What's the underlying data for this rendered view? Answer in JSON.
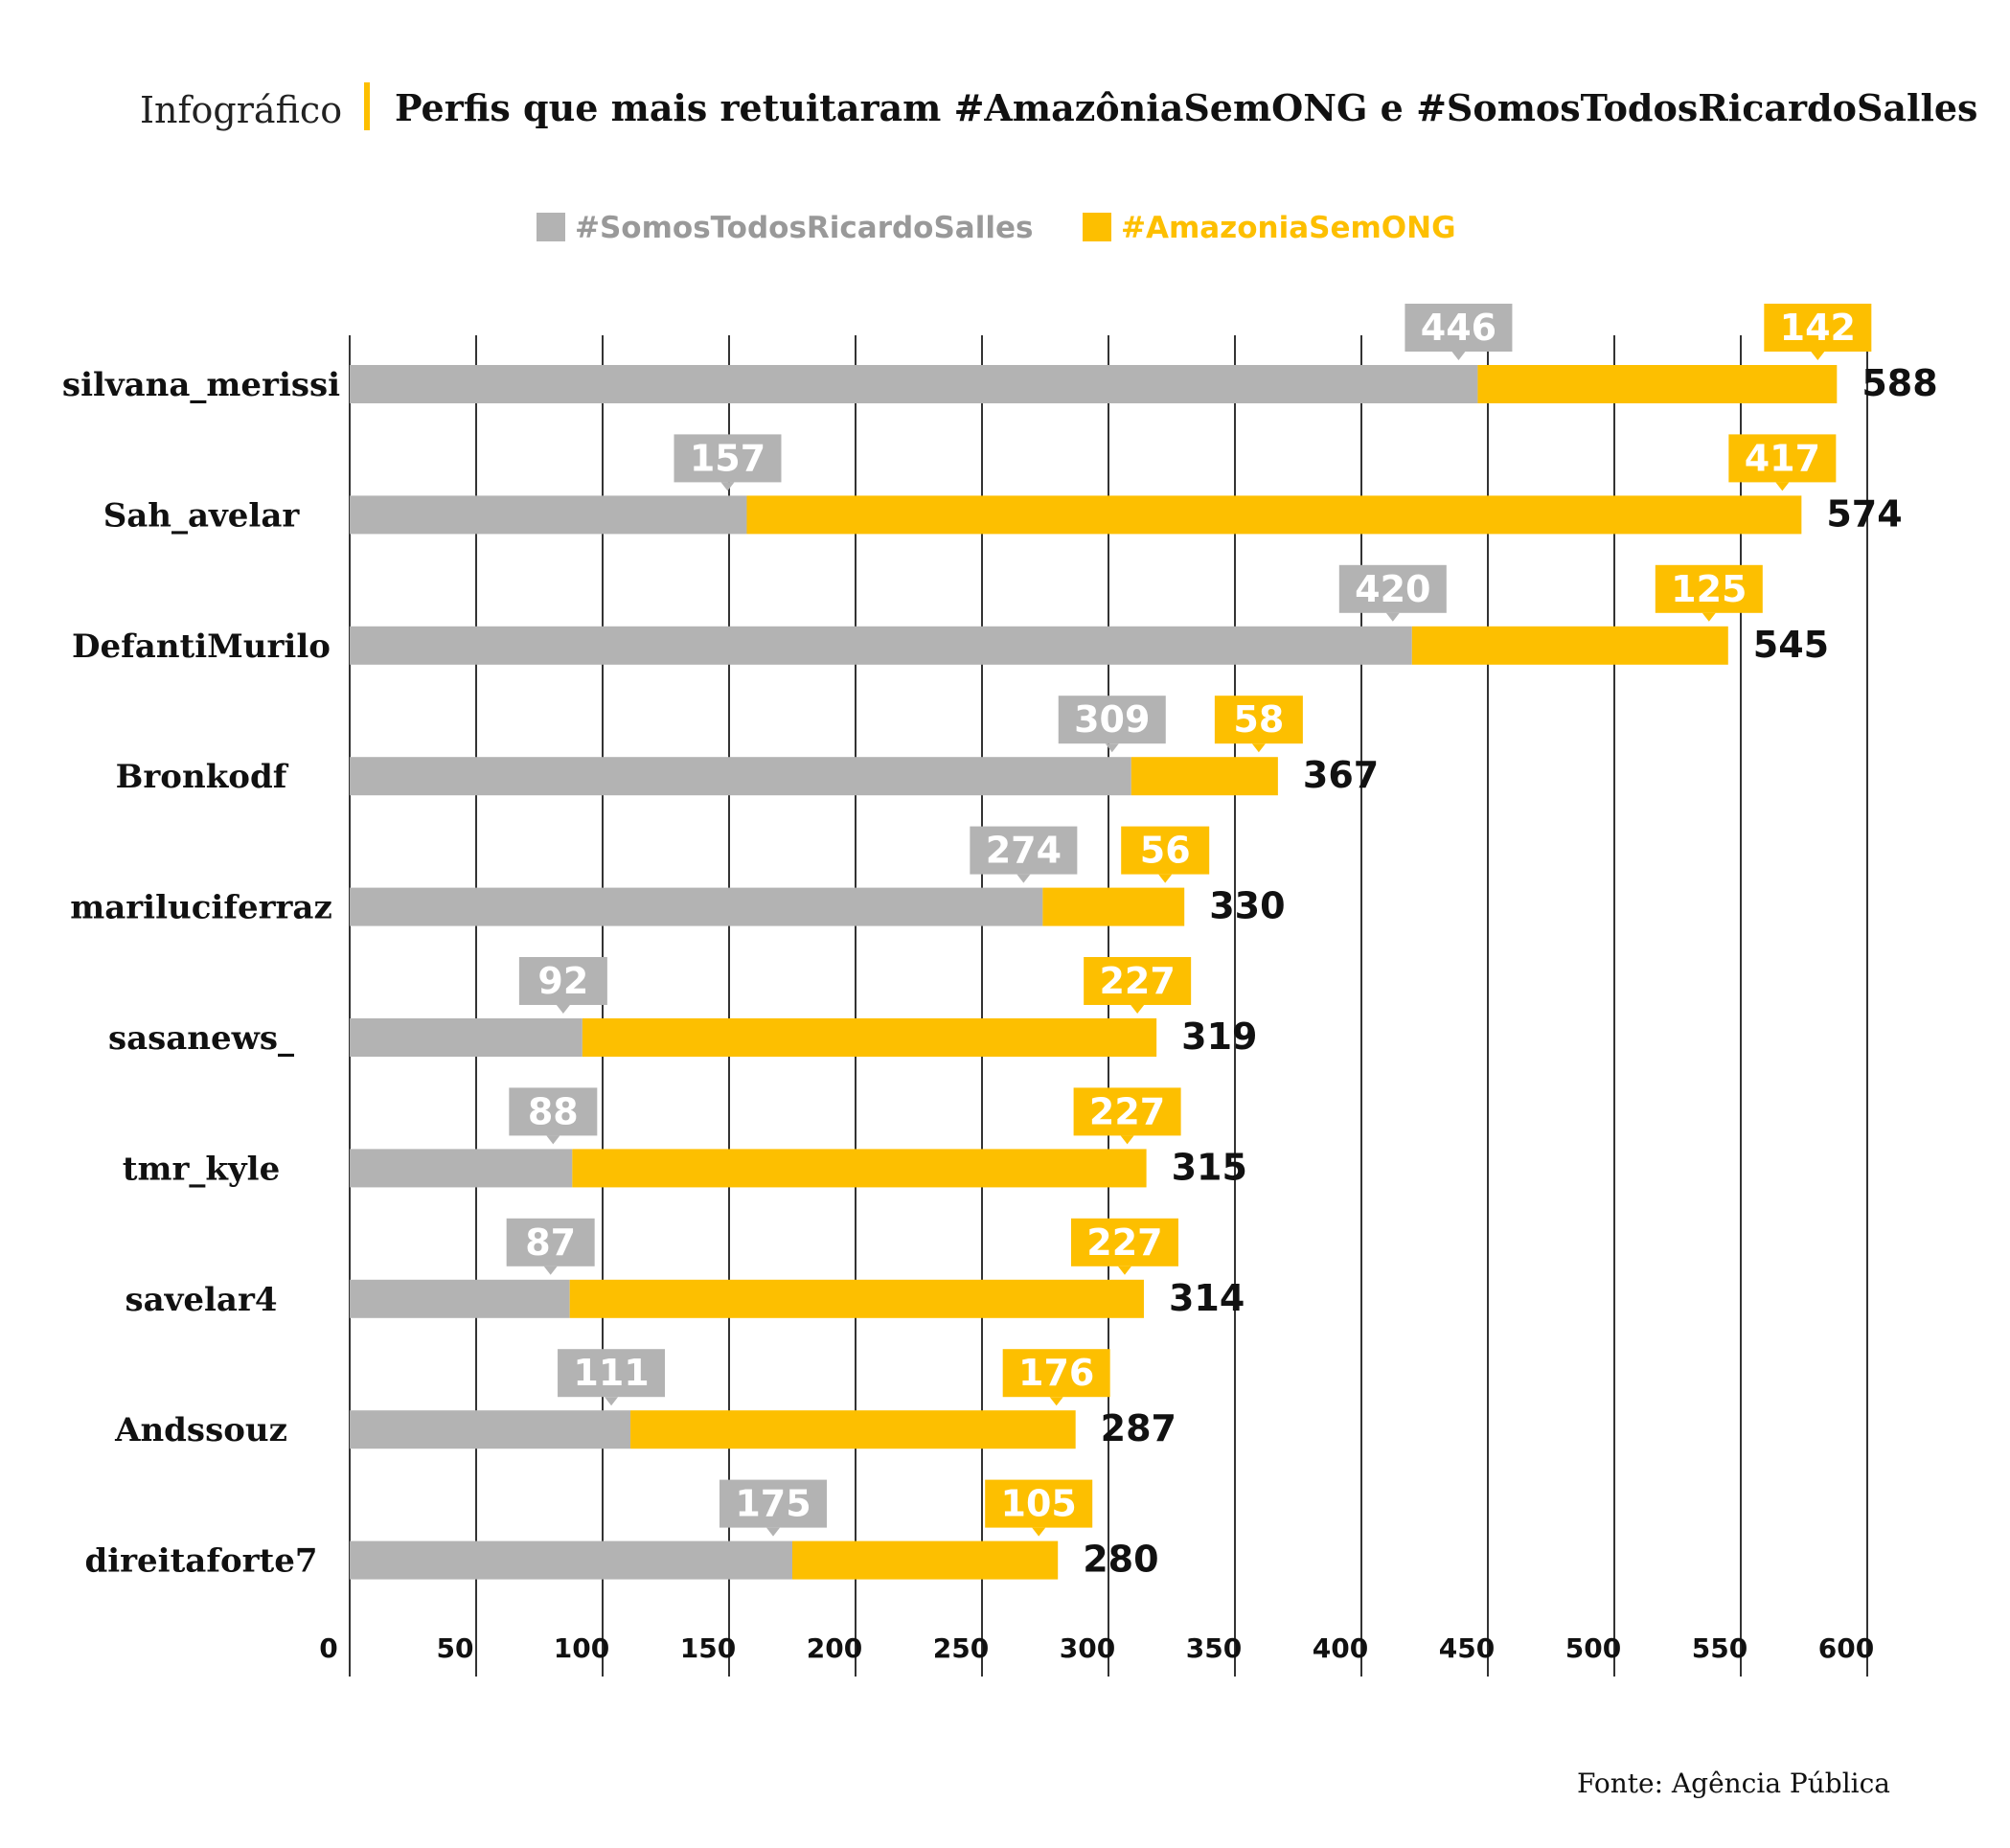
{
  "header": {
    "kicker": "Infográfico",
    "title": "Perfis que mais retuitaram #AmazôniaSemONG e #SomosTodosRicardoSalles"
  },
  "footer": {
    "source": "Fonte: Agência Pública"
  },
  "chart_data": {
    "type": "bar",
    "orientation": "horizontal",
    "stacked": true,
    "categories": [
      "silvana_merissi",
      "Sah_avelar",
      "DefantiMurilo",
      "Bronkodf",
      "mariluciferraz",
      "sasanews_",
      "tmr_kyle",
      "savelar4",
      "Andssouz",
      "direitaforte7"
    ],
    "series": [
      {
        "name": "#SomosTodosRicardoSalles",
        "color": "#b3b3b3",
        "values": [
          446,
          157,
          420,
          309,
          274,
          92,
          88,
          87,
          111,
          175
        ]
      },
      {
        "name": "#AmazoniaSemONG",
        "color": "#fdbf00",
        "values": [
          142,
          417,
          125,
          58,
          56,
          227,
          227,
          227,
          176,
          105
        ]
      }
    ],
    "totals": [
      588,
      574,
      545,
      367,
      330,
      319,
      315,
      314,
      287,
      280
    ],
    "xlim": [
      0,
      600
    ],
    "xticks": [
      0,
      50,
      100,
      150,
      200,
      250,
      300,
      350,
      400,
      450,
      500,
      550,
      600
    ],
    "grid": true,
    "legend_position": "top"
  }
}
